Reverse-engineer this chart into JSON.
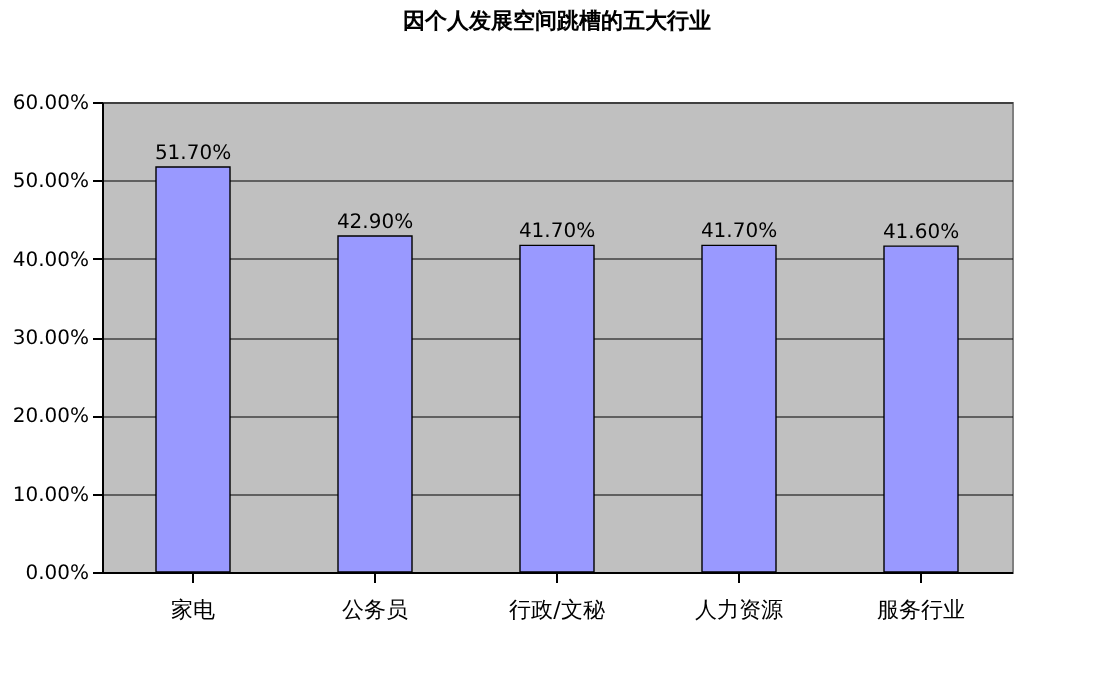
{
  "chart_data": {
    "type": "bar",
    "title": "因个人发展空间跳槽的五大行业",
    "categories": [
      "家电",
      "公务员",
      "行政/文秘",
      "人力资源",
      "服务行业"
    ],
    "values": [
      51.7,
      42.9,
      41.7,
      41.7,
      41.6
    ],
    "value_labels": [
      "51.70%",
      "42.90%",
      "41.70%",
      "41.70%",
      "41.60%"
    ],
    "color": "#9999ff",
    "ylim": [
      0,
      60
    ],
    "yticks": [
      {
        "value": 0,
        "label": "0.00%"
      },
      {
        "value": 10,
        "label": "10.00%"
      },
      {
        "value": 20,
        "label": "20.00%"
      },
      {
        "value": 30,
        "label": "30.00%"
      },
      {
        "value": 40,
        "label": "40.00%"
      },
      {
        "value": 50,
        "label": "50.00%"
      },
      {
        "value": 60,
        "label": "60.00%"
      }
    ],
    "grid": "y"
  }
}
